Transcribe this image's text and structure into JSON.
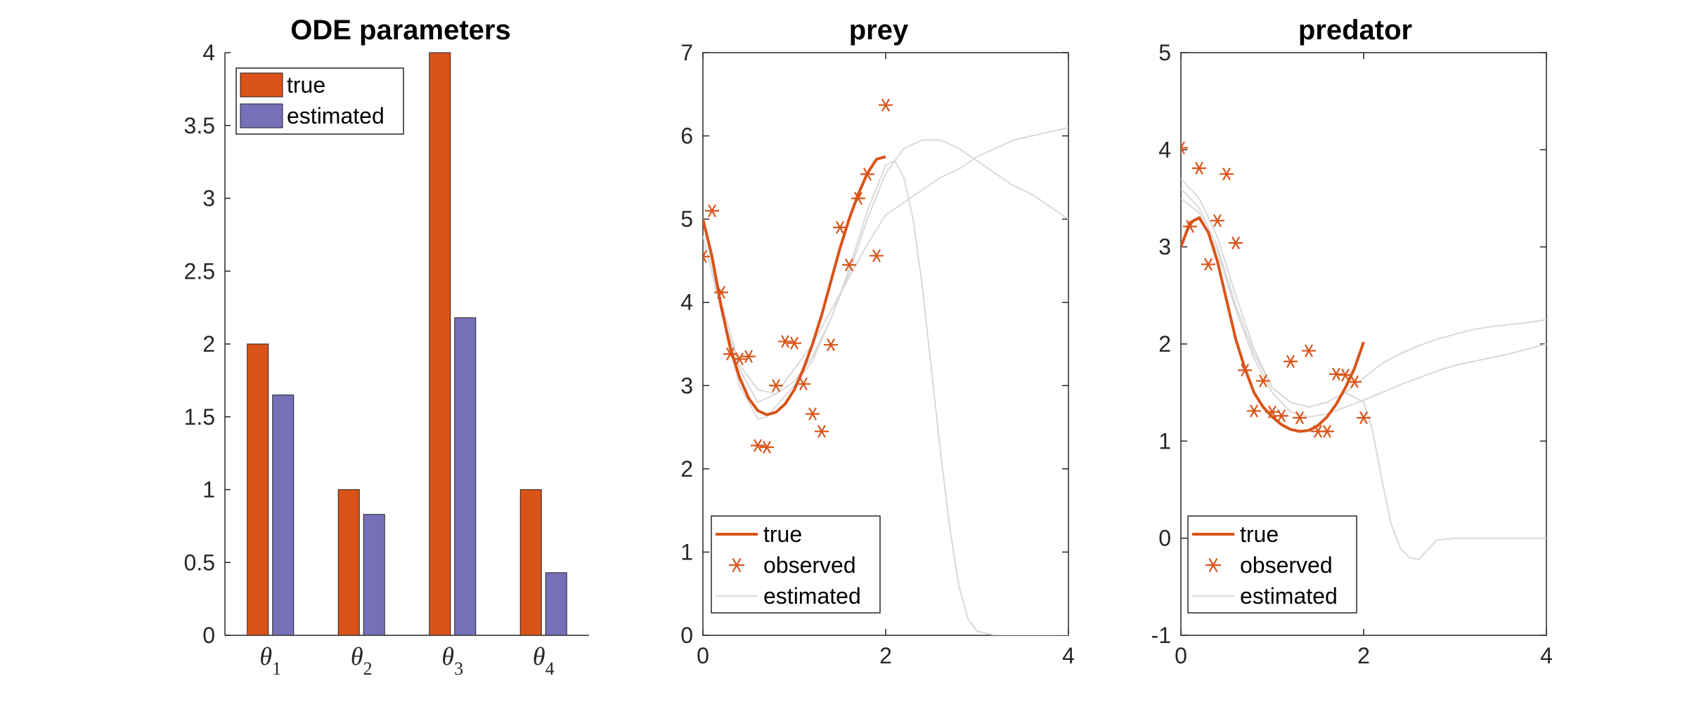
{
  "colors": {
    "true": "#D95319",
    "estimated_bar": "#7570B8",
    "estimated_line": "#d9d9d9",
    "axis": "#262626"
  },
  "chart_data": [
    {
      "type": "bar",
      "title": "ODE parameters",
      "categories": [
        {
          "symbol": "θ",
          "sub": "1"
        },
        {
          "symbol": "θ",
          "sub": "2"
        },
        {
          "symbol": "θ",
          "sub": "3"
        },
        {
          "symbol": "θ",
          "sub": "4"
        }
      ],
      "series": [
        {
          "name": "true",
          "values": [
            2,
            1,
            4,
            1
          ]
        },
        {
          "name": "estimated",
          "values": [
            1.65,
            0.83,
            2.18,
            0.43
          ]
        }
      ],
      "ylim": [
        0,
        4
      ],
      "yticks": [
        "0",
        "0.5",
        "1",
        "1.5",
        "2",
        "2.5",
        "3",
        "3.5",
        "4"
      ],
      "legend_position": "top-left"
    },
    {
      "type": "line",
      "title": "prey",
      "xlim": [
        0,
        4
      ],
      "ylim": [
        0,
        7
      ],
      "xticks": [
        "0",
        "2",
        "4"
      ],
      "yticks": [
        "0",
        "1",
        "2",
        "3",
        "4",
        "5",
        "6",
        "7"
      ],
      "legend": [
        "true",
        "observed",
        "estimated"
      ],
      "legend_position": "bottom-left",
      "true_curve": {
        "x": [
          0,
          0.1,
          0.2,
          0.3,
          0.4,
          0.5,
          0.6,
          0.7,
          0.8,
          0.9,
          1.0,
          1.1,
          1.2,
          1.3,
          1.4,
          1.5,
          1.6,
          1.7,
          1.8,
          1.9,
          2.0
        ],
        "y": [
          5.0,
          4.55,
          3.95,
          3.45,
          3.1,
          2.85,
          2.7,
          2.65,
          2.68,
          2.78,
          2.95,
          3.2,
          3.5,
          3.85,
          4.25,
          4.65,
          5.0,
          5.3,
          5.55,
          5.72,
          5.75
        ]
      },
      "observed": {
        "x": [
          0.0,
          0.1,
          0.2,
          0.3,
          0.4,
          0.5,
          0.6,
          0.7,
          0.8,
          0.9,
          1.0,
          1.1,
          1.2,
          1.3,
          1.4,
          1.5,
          1.6,
          1.7,
          1.8,
          1.9,
          2.0
        ],
        "y": [
          4.55,
          5.1,
          4.12,
          3.38,
          3.32,
          3.35,
          2.28,
          2.26,
          3.0,
          3.53,
          3.51,
          3.02,
          2.66,
          2.45,
          3.49,
          4.9,
          4.45,
          5.25,
          5.54,
          4.56,
          6.37
        ]
      },
      "estimated": [
        {
          "x": [
            0,
            0.2,
            0.4,
            0.6,
            0.8,
            1.0,
            1.2,
            1.4,
            1.6,
            1.8,
            2.0,
            2.2,
            2.4,
            2.6,
            2.8,
            3.0,
            3.2,
            3.4,
            3.6,
            3.8,
            4.0
          ],
          "y": [
            5.0,
            4.0,
            3.25,
            2.95,
            2.9,
            3.05,
            3.35,
            3.8,
            4.35,
            5.0,
            5.55,
            5.85,
            5.95,
            5.95,
            5.85,
            5.7,
            5.55,
            5.4,
            5.3,
            5.15,
            5.0
          ]
        },
        {
          "x": [
            0,
            0.2,
            0.4,
            0.6,
            0.7,
            0.8,
            1.0,
            1.2,
            1.4,
            1.6,
            1.8,
            2.0,
            2.1,
            2.2,
            2.3,
            2.4,
            2.5,
            2.6,
            2.7,
            2.8,
            2.9,
            3.0,
            3.2,
            3.4,
            3.6,
            3.8,
            4.0
          ],
          "y": [
            5.0,
            3.9,
            3.0,
            2.6,
            2.62,
            2.75,
            3.0,
            3.3,
            3.8,
            4.4,
            5.1,
            5.65,
            5.7,
            5.5,
            5.0,
            4.2,
            3.2,
            2.2,
            1.3,
            0.6,
            0.2,
            0.05,
            0.0,
            0.0,
            0.0,
            0.0,
            0.0
          ]
        },
        {
          "x": [
            0,
            0.2,
            0.4,
            0.6,
            0.8,
            1.0,
            1.2,
            1.4,
            1.6,
            1.8,
            2.0,
            2.2,
            2.4,
            2.6,
            2.8,
            3.0,
            3.2,
            3.4,
            3.6,
            3.8,
            4.0
          ],
          "y": [
            4.8,
            3.9,
            3.2,
            2.8,
            2.9,
            3.2,
            3.5,
            3.9,
            4.3,
            4.7,
            5.05,
            5.2,
            5.35,
            5.5,
            5.6,
            5.75,
            5.85,
            5.95,
            6.0,
            6.05,
            6.1
          ]
        }
      ]
    },
    {
      "type": "line",
      "title": "predator",
      "xlim": [
        0,
        4
      ],
      "ylim": [
        -1,
        5
      ],
      "xticks": [
        "0",
        "2",
        "4"
      ],
      "yticks": [
        "-1",
        "0",
        "1",
        "2",
        "3",
        "4",
        "5"
      ],
      "legend": [
        "true",
        "observed",
        "estimated"
      ],
      "legend_position": "bottom-left",
      "true_curve": {
        "x": [
          0,
          0.1,
          0.2,
          0.3,
          0.4,
          0.5,
          0.6,
          0.7,
          0.8,
          0.9,
          1.0,
          1.1,
          1.2,
          1.3,
          1.4,
          1.5,
          1.6,
          1.7,
          1.8,
          1.9,
          2.0
        ],
        "y": [
          3.0,
          3.25,
          3.3,
          3.15,
          2.85,
          2.45,
          2.05,
          1.75,
          1.5,
          1.35,
          1.25,
          1.17,
          1.12,
          1.1,
          1.11,
          1.16,
          1.25,
          1.38,
          1.55,
          1.75,
          2.02
        ]
      },
      "observed": {
        "x": [
          0.0,
          0.1,
          0.2,
          0.3,
          0.4,
          0.5,
          0.6,
          0.7,
          0.8,
          0.9,
          1.0,
          1.1,
          1.2,
          1.3,
          1.4,
          1.5,
          1.6,
          1.7,
          1.8,
          1.9,
          2.0
        ],
        "y": [
          4.02,
          3.21,
          3.81,
          2.82,
          3.27,
          3.75,
          3.04,
          1.73,
          1.31,
          1.62,
          1.3,
          1.26,
          1.82,
          1.24,
          1.93,
          1.1,
          1.1,
          1.69,
          1.68,
          1.61,
          1.24
        ]
      },
      "estimated": [
        {
          "x": [
            0,
            0.2,
            0.4,
            0.6,
            0.8,
            1.0,
            1.2,
            1.4,
            1.6,
            1.8,
            2.0,
            2.2,
            2.4,
            2.6,
            2.8,
            3.0,
            3.2,
            3.4,
            3.6,
            3.8,
            4.0
          ],
          "y": [
            3.6,
            3.4,
            3.0,
            2.4,
            1.9,
            1.55,
            1.4,
            1.35,
            1.4,
            1.5,
            1.65,
            1.8,
            1.9,
            1.98,
            2.05,
            2.1,
            2.15,
            2.18,
            2.2,
            2.22,
            2.25
          ]
        },
        {
          "x": [
            0,
            0.2,
            0.4,
            0.6,
            0.8,
            1.0,
            1.2,
            1.4,
            1.6,
            1.8,
            2.0,
            2.1,
            2.2,
            2.3,
            2.4,
            2.5,
            2.6,
            2.7,
            2.8,
            3.0,
            3.2,
            3.4,
            3.6,
            3.8,
            4.0
          ],
          "y": [
            3.7,
            3.5,
            3.1,
            2.5,
            1.95,
            1.55,
            1.4,
            1.35,
            1.4,
            1.5,
            1.4,
            1.1,
            0.6,
            0.15,
            -0.1,
            -0.2,
            -0.22,
            -0.12,
            -0.02,
            0.0,
            0.0,
            0.0,
            0.0,
            0.0,
            0.0
          ]
        },
        {
          "x": [
            0,
            0.2,
            0.4,
            0.6,
            0.8,
            1.0,
            1.2,
            1.4,
            1.6,
            1.8,
            2.0,
            2.2,
            2.4,
            2.6,
            2.8,
            3.0,
            3.2,
            3.4,
            3.6,
            3.8,
            4.0
          ],
          "y": [
            3.5,
            3.35,
            2.95,
            2.35,
            1.85,
            1.5,
            1.3,
            1.25,
            1.28,
            1.35,
            1.42,
            1.5,
            1.58,
            1.65,
            1.72,
            1.78,
            1.82,
            1.86,
            1.9,
            1.95,
            2.0
          ]
        }
      ]
    }
  ]
}
